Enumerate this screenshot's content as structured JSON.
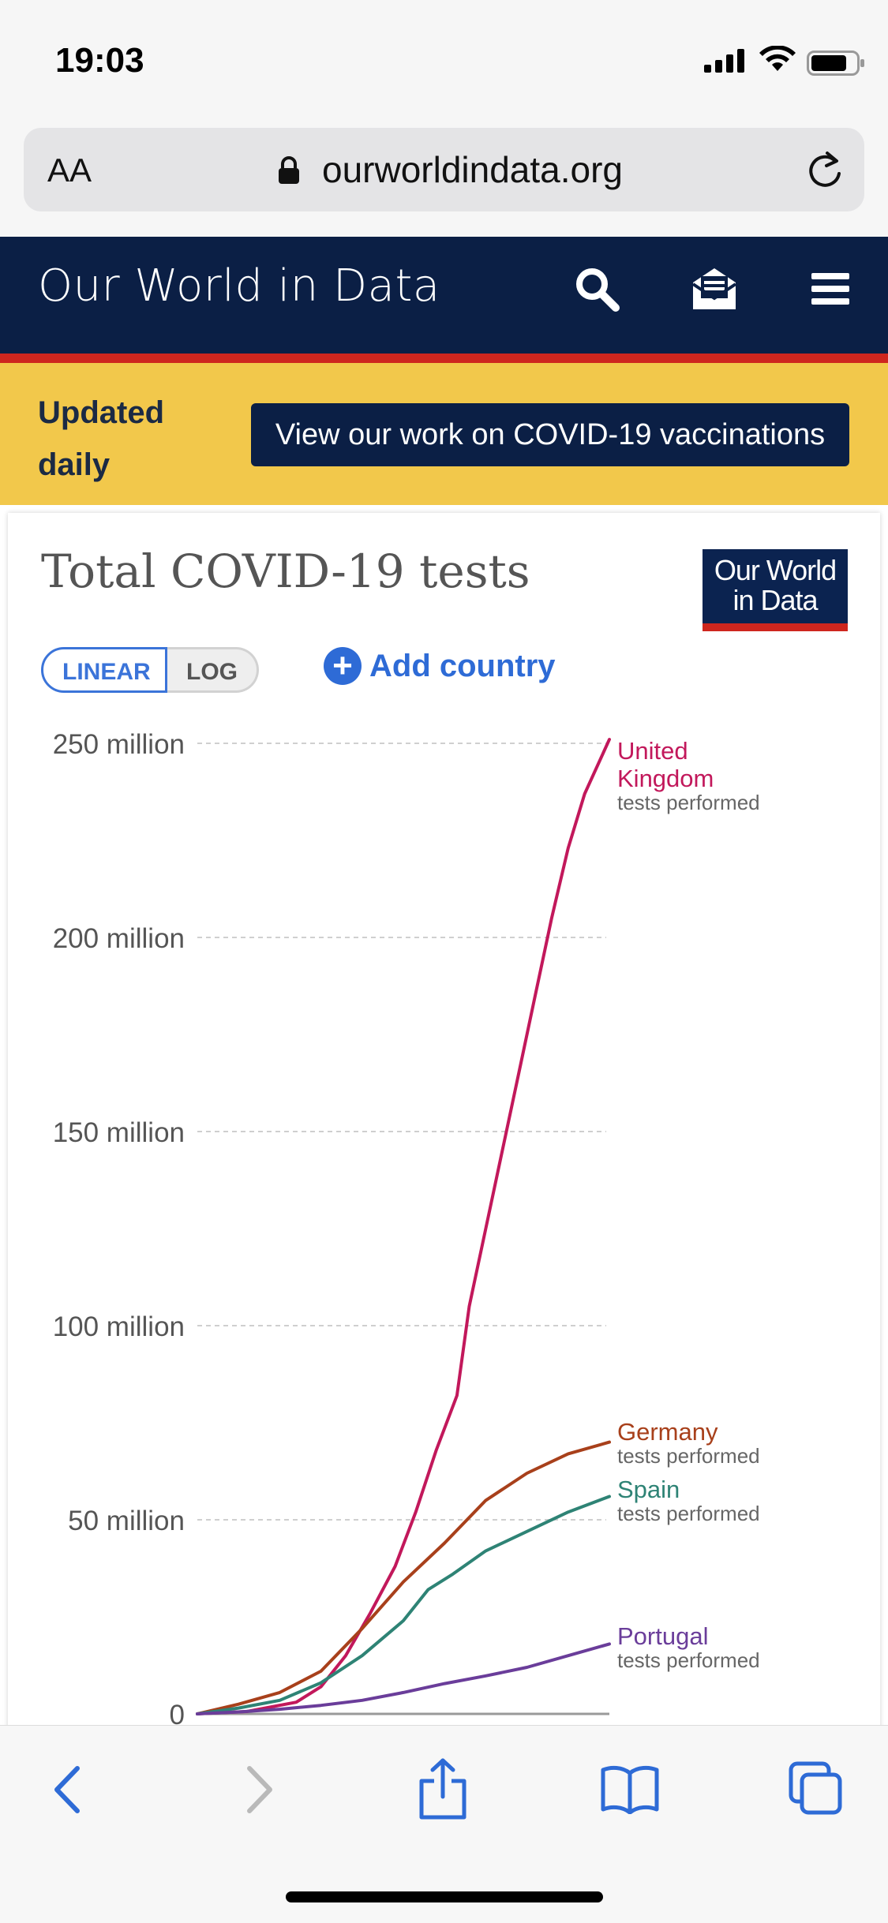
{
  "status_bar": {
    "time": "19:03"
  },
  "browser": {
    "text_size_label": "AA",
    "domain": "ourworldindata.org",
    "icons": {
      "lock": "lock-icon",
      "reload": "reload-icon"
    }
  },
  "site_header": {
    "brand": "Our World in Data",
    "icons": [
      "search-icon",
      "newsletter-icon",
      "menu-icon"
    ]
  },
  "banner": {
    "label": "Updated daily",
    "button": "View our work on COVID-19 vaccinations"
  },
  "chart_controls": {
    "linear": "LINEAR",
    "log": "LOG",
    "selected_scale": "linear",
    "add_country": "Add country"
  },
  "logo": {
    "line1": "Our World",
    "line2": "in Data"
  },
  "chart_data": {
    "type": "line",
    "title": "Total COVID-19 tests",
    "y_ticks": [
      {
        "value": 0,
        "label": "0"
      },
      {
        "value": 50000000,
        "label": "50 million"
      },
      {
        "value": 100000000,
        "label": "100 million"
      },
      {
        "value": 150000000,
        "label": "150 million"
      },
      {
        "value": 200000000,
        "label": "200 million"
      },
      {
        "value": 250000000,
        "label": "250 million"
      }
    ],
    "ylim": [
      0,
      250000000
    ],
    "grid": true,
    "x_range": [
      0,
      100
    ],
    "series": [
      {
        "name": "United Kingdom",
        "label_lines": [
          "United",
          "Kingdom"
        ],
        "sublabel": "tests performed",
        "color": "#c2185b",
        "points": [
          [
            0,
            0
          ],
          [
            12,
            600000
          ],
          [
            24,
            3000000
          ],
          [
            30,
            7000000
          ],
          [
            36,
            15000000
          ],
          [
            42,
            26000000
          ],
          [
            48,
            38000000
          ],
          [
            53,
            52000000
          ],
          [
            58,
            68000000
          ],
          [
            63,
            82000000
          ],
          [
            66,
            105000000
          ],
          [
            70,
            125000000
          ],
          [
            74,
            145000000
          ],
          [
            78,
            165000000
          ],
          [
            82,
            185000000
          ],
          [
            86,
            205000000
          ],
          [
            90,
            223000000
          ],
          [
            94,
            237000000
          ],
          [
            100,
            251000000
          ]
        ]
      },
      {
        "name": "Germany",
        "sublabel": "tests performed",
        "color": "#a8401b",
        "points": [
          [
            0,
            0
          ],
          [
            10,
            2500000
          ],
          [
            20,
            5500000
          ],
          [
            30,
            11000000
          ],
          [
            40,
            22000000
          ],
          [
            50,
            34000000
          ],
          [
            60,
            44000000
          ],
          [
            70,
            55000000
          ],
          [
            80,
            62000000
          ],
          [
            90,
            67000000
          ],
          [
            100,
            70000000
          ]
        ]
      },
      {
        "name": "Spain",
        "sublabel": "tests performed",
        "color": "#2e8375",
        "points": [
          [
            0,
            0
          ],
          [
            10,
            1500000
          ],
          [
            20,
            3500000
          ],
          [
            30,
            8000000
          ],
          [
            40,
            15000000
          ],
          [
            50,
            24000000
          ],
          [
            56,
            32000000
          ],
          [
            62,
            36000000
          ],
          [
            70,
            42000000
          ],
          [
            80,
            47000000
          ],
          [
            90,
            52000000
          ],
          [
            100,
            56000000
          ]
        ]
      },
      {
        "name": "Portugal",
        "sublabel": "tests performed",
        "color": "#6a3d9a",
        "points": [
          [
            0,
            0
          ],
          [
            10,
            500000
          ],
          [
            20,
            1200000
          ],
          [
            30,
            2200000
          ],
          [
            40,
            3500000
          ],
          [
            50,
            5500000
          ],
          [
            60,
            7800000
          ],
          [
            70,
            9800000
          ],
          [
            80,
            12000000
          ],
          [
            90,
            15000000
          ],
          [
            100,
            18000000
          ]
        ]
      }
    ]
  }
}
